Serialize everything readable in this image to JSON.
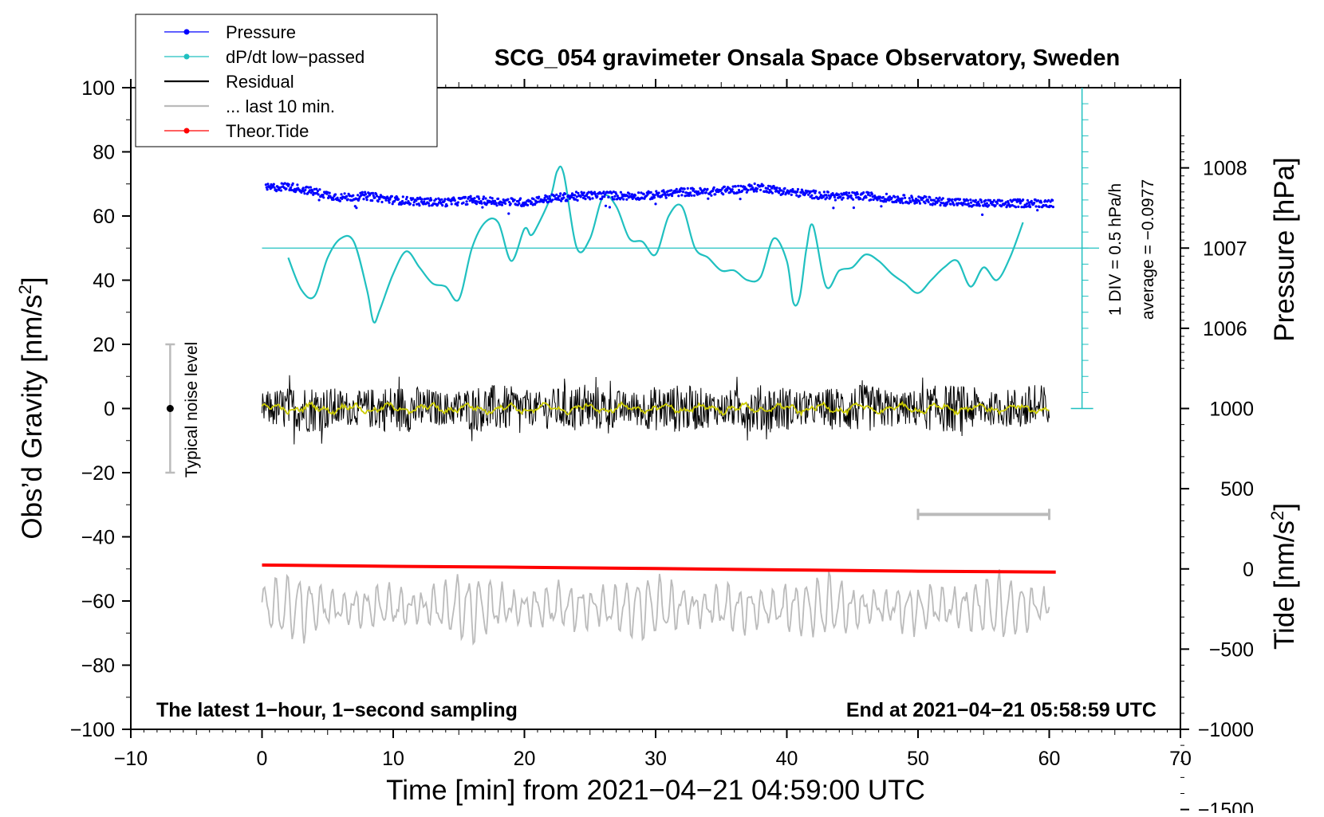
{
  "chart_data": {
    "type": "line",
    "title": "SCG_054 gravimeter Onsala Space Observatory, Sweden",
    "xlabel": "Time [min] from 2021−04−21 04:59:00 UTC",
    "ylabel_left": "Obs’d Gravity [nm/s",
    "ylabel_right_pressure": "Pressure [hPa]",
    "ylabel_right_tide": "Tide [nm/s",
    "superscript": "2",
    "ylabel_close": "]",
    "xlim": [
      -10,
      70
    ],
    "ylim": [
      -100,
      100
    ],
    "x_ticks": [
      {
        "v": -10,
        "label": "−10"
      },
      {
        "v": 0,
        "label": "0"
      },
      {
        "v": 10,
        "label": "10"
      },
      {
        "v": 20,
        "label": "20"
      },
      {
        "v": 30,
        "label": "30"
      },
      {
        "v": 40,
        "label": "40"
      },
      {
        "v": 50,
        "label": "50"
      },
      {
        "v": 60,
        "label": "60"
      },
      {
        "v": 70,
        "label": "70"
      }
    ],
    "y_ticks": [
      {
        "v": 100,
        "label": "100"
      },
      {
        "v": 80,
        "label": "80"
      },
      {
        "v": 60,
        "label": "60"
      },
      {
        "v": 40,
        "label": "40"
      },
      {
        "v": 20,
        "label": "20"
      },
      {
        "v": 0,
        "label": "0"
      },
      {
        "v": -20,
        "label": "−20"
      },
      {
        "v": -40,
        "label": "−40"
      },
      {
        "v": -60,
        "label": "−60"
      },
      {
        "v": -80,
        "label": "−80"
      },
      {
        "v": -100,
        "label": "−100"
      }
    ],
    "pressure_axis": {
      "ticks": [
        {
          "hpa": 1008,
          "label": "1008"
        },
        {
          "hpa": 1007,
          "label": "1007"
        },
        {
          "hpa": 1006,
          "label": "1006"
        }
      ],
      "mapping": {
        "hpa_ref": 1007,
        "gravity_ref": 50,
        "gravity_per_hpa": 25
      }
    },
    "tide_axis": {
      "ticks": [
        {
          "v": 1000,
          "label": "1000"
        },
        {
          "v": 500,
          "label": "500"
        },
        {
          "v": 0,
          "label": "0"
        },
        {
          "v": -500,
          "label": "−500"
        },
        {
          "v": -1000,
          "label": "−1000"
        },
        {
          "v": -1500,
          "label": "−1500"
        }
      ],
      "mapping": {
        "tide_ref": 0,
        "gravity_ref": -50,
        "gravity_per_unit": 0.05
      }
    },
    "legend": [
      {
        "label": "Pressure",
        "color": "#0000ff",
        "marker": true
      },
      {
        "label": "dP/dt low−passed",
        "color": "#20c0c0",
        "marker": true
      },
      {
        "label": "Residual",
        "color": "#000000",
        "marker": false
      },
      {
        "label": "... last 10 min.",
        "color": "#bbbbbb",
        "marker": false
      },
      {
        "label": "Theor.Tide",
        "color": "#ff0000",
        "marker": true
      }
    ],
    "series": {
      "pressure_hpa": {
        "name": "Pressure",
        "x": [
          0.3,
          2,
          4,
          6,
          8,
          10,
          12,
          14,
          16,
          18,
          20,
          22,
          24,
          26,
          28,
          30,
          32,
          34,
          36,
          38,
          40,
          42,
          44,
          46,
          48,
          50,
          52,
          54,
          56,
          58,
          60.5
        ],
        "values": [
          1007.75,
          1007.77,
          1007.7,
          1007.63,
          1007.65,
          1007.6,
          1007.58,
          1007.57,
          1007.6,
          1007.58,
          1007.57,
          1007.62,
          1007.65,
          1007.66,
          1007.65,
          1007.66,
          1007.7,
          1007.7,
          1007.73,
          1007.76,
          1007.7,
          1007.67,
          1007.64,
          1007.65,
          1007.62,
          1007.6,
          1007.58,
          1007.56,
          1007.55,
          1007.56,
          1007.56
        ]
      },
      "dpdt_lowpassed": {
        "name": "dP/dt low−passed",
        "x": [
          2,
          3,
          4,
          5,
          6,
          7,
          8,
          8.5,
          9,
          10,
          11,
          12,
          13,
          14,
          15,
          16,
          17,
          18,
          19,
          20,
          20.5,
          21,
          22,
          22.5,
          23,
          24,
          25,
          26,
          27,
          28,
          29,
          30,
          31,
          32,
          33,
          34,
          35,
          36,
          37,
          38,
          39,
          40,
          40.5,
          41,
          41.5,
          42,
          43,
          44,
          45,
          46,
          47,
          48,
          49,
          50,
          51,
          52,
          53,
          54,
          55,
          56,
          57,
          58
        ],
        "values": [
          47,
          37,
          35,
          47,
          53,
          52,
          37,
          27,
          31,
          42,
          49,
          44,
          39,
          38,
          34,
          50,
          58,
          58,
          46,
          56,
          54,
          57,
          66,
          74,
          73,
          50,
          53,
          66,
          63,
          53,
          52,
          48,
          60,
          63,
          50,
          47,
          43,
          43,
          40,
          41,
          53,
          46,
          33,
          35,
          50,
          57,
          38,
          43,
          44,
          48,
          46,
          42,
          39,
          36,
          40,
          44,
          46,
          38,
          44,
          40,
          47,
          58
        ]
      },
      "residual": {
        "name": "Residual",
        "x_range": [
          0,
          60
        ],
        "amplitude": "±8 typical, max ±12",
        "mean": 0
      },
      "residual_smoothed": {
        "name": "Residual (smoothed)",
        "color": "#cccc00",
        "x_range": [
          0,
          60
        ],
        "mean": 0
      },
      "last10min": {
        "name": "... last 10 min.",
        "x_range": [
          0,
          60
        ],
        "mean": -62,
        "amplitude": "±12"
      },
      "theor_tide": {
        "name": "Theor.Tide",
        "x": [
          0,
          10,
          20,
          30,
          40,
          50,
          60.5
        ],
        "values": [
          -48.8,
          -49.2,
          -49.5,
          -49.9,
          -50.3,
          -50.7,
          -51.0
        ]
      }
    },
    "annotations": {
      "noise_label": "Typical noise level",
      "noise_bar": {
        "x": -7,
        "center": 0,
        "half_range": 20
      },
      "pressure_scale_label_1": "1 DIV = 0.5 hPa/h",
      "pressure_scale_label_2": "average = −0.0977",
      "last10_bar": {
        "x_from": 50,
        "x_to": 60,
        "y": -33
      },
      "bottom_left": "The latest 1−hour, 1−second sampling",
      "bottom_right": "End at 2021−04−21 05:58:59 UTC"
    },
    "colors": {
      "pressure": "#0000ff",
      "dpdt": "#20c0c0",
      "residual": "#000000",
      "residual_smooth": "#cccc00",
      "last10": "#bbbbbb",
      "tide": "#ff0000",
      "noise": "#bbbbbb"
    }
  }
}
